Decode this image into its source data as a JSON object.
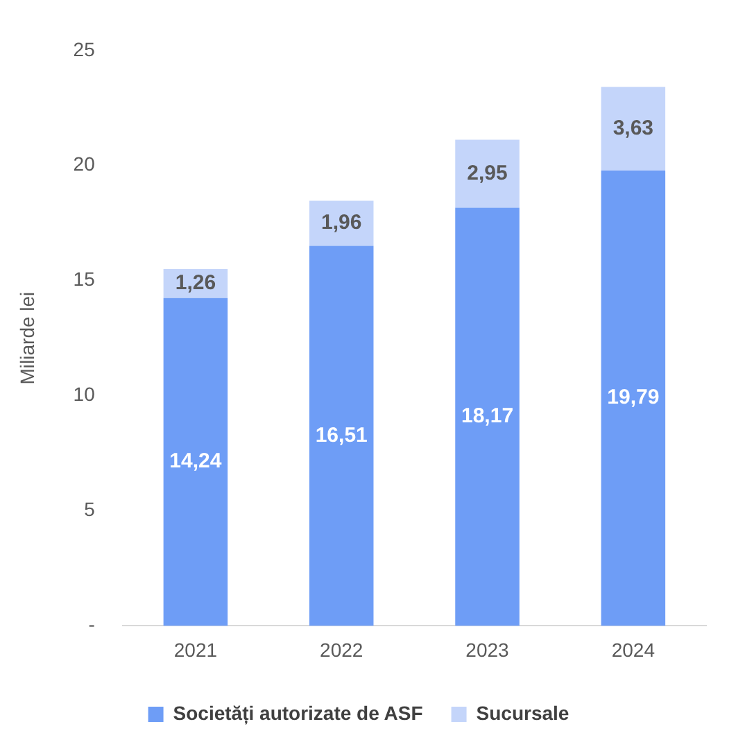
{
  "chart_data": {
    "type": "bar",
    "stacked": true,
    "ylabel": "Miliarde lei",
    "categories": [
      "2021",
      "2022",
      "2023",
      "2024"
    ],
    "series": [
      {
        "name": "Societăți autorizate de ASF",
        "color": "#6e9df6",
        "values": [
          14.24,
          16.51,
          18.17,
          19.79
        ],
        "value_labels": [
          "14,24",
          "16,51",
          "18,17",
          "19,79"
        ]
      },
      {
        "name": "Sucursale",
        "color": "#c4d5fa",
        "values": [
          1.26,
          1.96,
          2.95,
          3.63
        ],
        "value_labels": [
          "1,26",
          "1,96",
          "2,95",
          "3,63"
        ]
      }
    ],
    "ylim": [
      0,
      25
    ],
    "yticks": [
      {
        "value": 0,
        "label": "-"
      },
      5,
      10,
      15,
      20,
      25
    ],
    "grid": false,
    "legend": "bottom"
  }
}
